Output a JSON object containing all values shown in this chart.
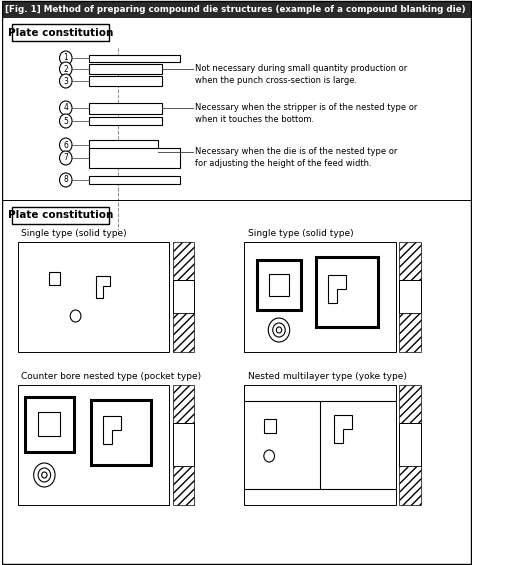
{
  "title": "[Fig. 1] Method of preparing compound die structures (example of a compound blanking die)",
  "plate_label": "Plate constitution",
  "annotations": [
    "Not necessary during small quantity production or\nwhen the punch cross-section is large.",
    "Necessary when the stripper is of the nested type or\nwhen it touches the bottom.",
    "Necessary when the die is of the nested type or\nfor adjusting the height of the feed width."
  ],
  "diagram_labels": [
    "Single type (solid type)",
    "Single type (solid type)",
    "Counter bore nested type (pocket type)",
    "Nested multilayer type (yoke type)"
  ],
  "bg_color": "#ffffff",
  "line_color": "#000000"
}
